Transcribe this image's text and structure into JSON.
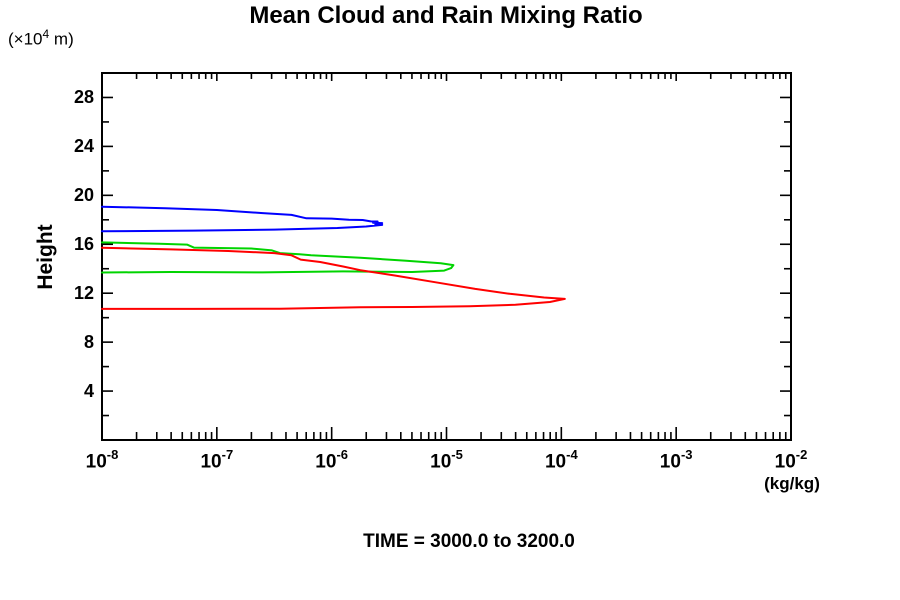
{
  "title": "Mean Cloud and Rain Mixing Ratio",
  "footer": "TIME = 3000.0 to 3200.0",
  "y_axis": {
    "unit_prefix": "(×10",
    "unit_exp": "4",
    "unit_suffix": " m)",
    "label": "Height",
    "major_ticks": [
      4,
      8,
      12,
      16,
      20,
      24,
      28
    ],
    "minor_tick_step": 2,
    "range": [
      0,
      30
    ]
  },
  "x_axis": {
    "unit": "(kg/kg)",
    "scale": "log",
    "range_log10": [
      -8,
      -2
    ],
    "tick_labels": [
      {
        "base": "10",
        "exp": "-8"
      },
      {
        "base": "10",
        "exp": "-7"
      },
      {
        "base": "10",
        "exp": "-6"
      },
      {
        "base": "10",
        "exp": "-5"
      },
      {
        "base": "10",
        "exp": "-4"
      },
      {
        "base": "10",
        "exp": "-3"
      },
      {
        "base": "10",
        "exp": "-2"
      }
    ]
  },
  "chart_data": {
    "type": "line",
    "title": "Mean Cloud and Rain Mixing Ratio",
    "xlabel": "(kg/kg)",
    "ylabel": "Height (x10^4 m)",
    "x_scale": "log10",
    "x_range_log10": [
      -8,
      -2
    ],
    "y_range": [
      0,
      30
    ],
    "grid": false,
    "legend": "none",
    "note": "Vertical profiles; points are [log10(mixing ratio kg/kg), height in 10^4 m]",
    "series": [
      {
        "name": "blue-profile",
        "color": "#0000ff",
        "peak": {
          "log10_value": -5.56,
          "height": 17.7
        },
        "points": [
          [
            -8.0,
            19.07
          ],
          [
            -7.45,
            18.95
          ],
          [
            -7.0,
            18.8
          ],
          [
            -6.6,
            18.55
          ],
          [
            -6.35,
            18.4
          ],
          [
            -6.22,
            18.12
          ],
          [
            -6.0,
            18.1
          ],
          [
            -5.85,
            18.0
          ],
          [
            -5.73,
            17.98
          ],
          [
            -5.66,
            17.87
          ],
          [
            -5.6,
            17.86
          ],
          [
            -5.64,
            17.76
          ],
          [
            -5.56,
            17.73
          ],
          [
            -5.62,
            17.63
          ],
          [
            -5.56,
            17.58
          ],
          [
            -5.7,
            17.45
          ],
          [
            -5.95,
            17.33
          ],
          [
            -6.5,
            17.2
          ],
          [
            -7.2,
            17.12
          ],
          [
            -8.0,
            17.06
          ]
        ]
      },
      {
        "name": "green-profile",
        "color": "#00d400",
        "peak": {
          "log10_value": -4.94,
          "height": 14.3
        },
        "points": [
          [
            -8.0,
            16.15
          ],
          [
            -7.5,
            16.05
          ],
          [
            -7.26,
            15.97
          ],
          [
            -7.2,
            15.73
          ],
          [
            -6.7,
            15.65
          ],
          [
            -6.52,
            15.5
          ],
          [
            -6.45,
            15.28
          ],
          [
            -6.28,
            15.18
          ],
          [
            -6.18,
            15.1
          ],
          [
            -5.75,
            14.9
          ],
          [
            -5.35,
            14.65
          ],
          [
            -5.05,
            14.45
          ],
          [
            -4.94,
            14.3
          ],
          [
            -4.96,
            14.05
          ],
          [
            -5.02,
            13.85
          ],
          [
            -5.3,
            13.73
          ],
          [
            -5.9,
            13.78
          ],
          [
            -6.6,
            13.7
          ],
          [
            -7.4,
            13.73
          ],
          [
            -8.0,
            13.69
          ]
        ]
      },
      {
        "name": "red-profile",
        "color": "#ff0000",
        "peak": {
          "log10_value": -3.97,
          "height": 11.53
        },
        "points": [
          [
            -8.0,
            15.72
          ],
          [
            -7.4,
            15.58
          ],
          [
            -6.9,
            15.45
          ],
          [
            -6.5,
            15.28
          ],
          [
            -6.35,
            15.1
          ],
          [
            -6.27,
            14.75
          ],
          [
            -6.1,
            14.55
          ],
          [
            -5.9,
            14.18
          ],
          [
            -5.75,
            13.88
          ],
          [
            -5.45,
            13.45
          ],
          [
            -5.1,
            12.9
          ],
          [
            -4.75,
            12.35
          ],
          [
            -4.45,
            11.95
          ],
          [
            -4.15,
            11.65
          ],
          [
            -3.97,
            11.53
          ],
          [
            -4.1,
            11.28
          ],
          [
            -4.4,
            11.05
          ],
          [
            -4.8,
            10.93
          ],
          [
            -5.3,
            10.87
          ],
          [
            -5.75,
            10.85
          ],
          [
            -6.45,
            10.73
          ],
          [
            -7.2,
            10.72
          ],
          [
            -8.0,
            10.72
          ]
        ]
      }
    ]
  }
}
